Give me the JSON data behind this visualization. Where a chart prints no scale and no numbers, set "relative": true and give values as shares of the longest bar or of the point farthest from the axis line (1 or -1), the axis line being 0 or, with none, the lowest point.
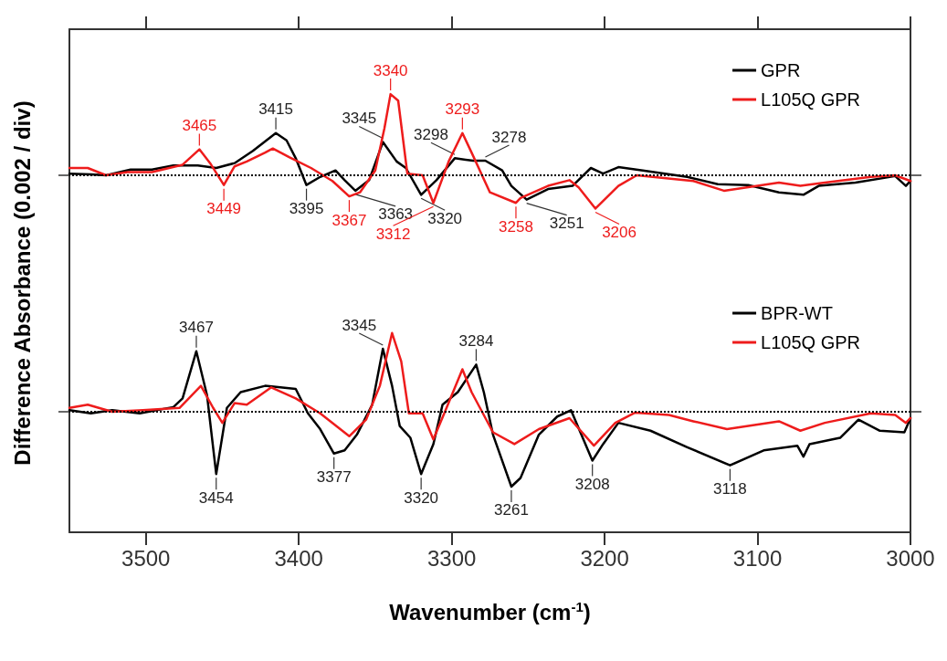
{
  "chart_data": [
    {
      "type": "line",
      "relative": true,
      "ylabel": "Difference Absorbance (0.002 / div)",
      "xlim": [
        3550,
        3000
      ],
      "xticks": [
        {
          "value": 3500,
          "label": null
        },
        {
          "value": 3400,
          "label": null
        },
        {
          "value": 3300,
          "label": null
        },
        {
          "value": 3200,
          "label": null
        },
        {
          "value": 3100,
          "label": null
        },
        {
          "value": 3000,
          "label": null
        }
      ],
      "tick_labels": false,
      "legend": "top right",
      "ref_lines": [
        {
          "axis": "y",
          "value": 0,
          "color": "#000000",
          "line_style": "dotted"
        }
      ],
      "annotations": [
        {
          "text": "3465",
          "x": 3465,
          "y": 0.32
        },
        {
          "text": "3415",
          "x": 3415,
          "y": 0.52
        },
        {
          "text": "3340",
          "x": 3340,
          "y": 1
        },
        {
          "text": "3345",
          "x": 3345,
          "y": 0.41
        },
        {
          "text": "3298",
          "x": 3298,
          "y": 0.21
        },
        {
          "text": "3293",
          "x": 3293,
          "y": 0.52
        },
        {
          "text": "3278",
          "x": 3278,
          "y": 0.18
        },
        {
          "text": "3449",
          "x": 3449,
          "y": -0.12
        },
        {
          "text": "3395",
          "x": 3395,
          "y": -0.12
        },
        {
          "text": "3367",
          "x": 3367,
          "y": -0.26
        },
        {
          "text": "3363",
          "x": 3363,
          "y": -0.19
        },
        {
          "text": "3320",
          "x": 3320,
          "y": -0.24
        },
        {
          "text": "3312",
          "x": 3312,
          "y": -0.34
        },
        {
          "text": "3258",
          "x": 3258,
          "y": -0.34
        },
        {
          "text": "3251",
          "x": 3251,
          "y": -0.3
        },
        {
          "text": "3206",
          "x": 3206,
          "y": -0.41
        }
      ],
      "series": [
        {
          "name": "GPR",
          "color": "#000000",
          "x": [
            3550,
            3536,
            3526,
            3510,
            3496,
            3482,
            3466,
            3454,
            3442,
            3430,
            3415,
            3408,
            3402,
            3395,
            3386,
            3376,
            3370,
            3363,
            3354,
            3345,
            3336,
            3330,
            3320,
            3310,
            3298,
            3286,
            3278,
            3267,
            3261,
            3251,
            3237,
            3221,
            3209,
            3201,
            3191,
            3175,
            3146,
            3126,
            3106,
            3086,
            3070,
            3060,
            3036,
            3010,
            3003,
            3000
          ],
          "values": [
            0.02,
            0.01,
            0,
            0.07,
            0.07,
            0.12,
            0.12,
            0.09,
            0.15,
            0.3,
            0.52,
            0.43,
            0.21,
            -0.12,
            -0.02,
            0.06,
            -0.06,
            -0.19,
            -0.06,
            0.41,
            0.17,
            0.09,
            -0.24,
            -0.06,
            0.21,
            0.18,
            0.18,
            0.06,
            -0.13,
            -0.3,
            -0.17,
            -0.13,
            0.09,
            0.02,
            0.1,
            0.06,
            -0.02,
            -0.11,
            -0.12,
            -0.21,
            -0.24,
            -0.13,
            -0.09,
            -0.01,
            -0.13,
            -0.07
          ]
        },
        {
          "name": "L105Q GPR",
          "color": "#ee1c1c",
          "x": [
            3550,
            3538,
            3526,
            3512,
            3496,
            3476,
            3465,
            3458,
            3449,
            3442,
            3434,
            3422,
            3417,
            3406,
            3392,
            3378,
            3367,
            3360,
            3350,
            3344,
            3340,
            3335,
            3329,
            3319,
            3312,
            3302,
            3293,
            3287,
            3275,
            3258,
            3255,
            3237,
            3223,
            3217,
            3206,
            3191,
            3179,
            3142,
            3122,
            3086,
            3072,
            3056,
            3026,
            3010,
            3000
          ],
          "values": [
            0.09,
            0.09,
            0,
            0.04,
            0.04,
            0.13,
            0.32,
            0.15,
            -0.12,
            0.11,
            0.17,
            0.28,
            0.33,
            0.22,
            0.09,
            -0.07,
            -0.26,
            -0.21,
            0.06,
            0.58,
            1,
            0.92,
            0.02,
            0,
            -0.34,
            0.17,
            0.52,
            0.28,
            -0.21,
            -0.34,
            -0.28,
            -0.13,
            -0.06,
            -0.15,
            -0.41,
            -0.13,
            0,
            -0.07,
            -0.19,
            -0.09,
            -0.13,
            -0.09,
            -0.02,
            0,
            -0.07
          ]
        }
      ]
    },
    {
      "type": "line",
      "relative": true,
      "xlabel": "Wavenumber (cm$^{-1}$)",
      "xlim": [
        3550,
        3000
      ],
      "xticks": [
        3500,
        3400,
        3300,
        3200,
        3100,
        3000
      ],
      "tick_labels": "x",
      "legend": "top right",
      "ref_lines": [
        {
          "axis": "y",
          "value": 0,
          "color": "#000000",
          "line_style": "dotted"
        }
      ],
      "annotations": [
        {
          "text": "3467",
          "x": 3467,
          "y": 0.77
        },
        {
          "text": "3345",
          "x": 3345,
          "y": 0.8
        },
        {
          "text": "3284",
          "x": 3284,
          "y": 0.6
        },
        {
          "text": "3454",
          "x": 3454,
          "y": -0.79
        },
        {
          "text": "3377",
          "x": 3377,
          "y": -0.53
        },
        {
          "text": "3320",
          "x": 3320,
          "y": -0.79
        },
        {
          "text": "3261",
          "x": 3261,
          "y": -0.95
        },
        {
          "text": "3208",
          "x": 3208,
          "y": -0.62
        },
        {
          "text": "3118",
          "x": 3118,
          "y": -0.68
        }
      ],
      "series": [
        {
          "name": "BPR-WT",
          "color": "#000000",
          "x": [
            3550,
            3536,
            3522,
            3504,
            3482,
            3476,
            3467,
            3460,
            3454,
            3447,
            3438,
            3422,
            3402,
            3394,
            3386,
            3377,
            3370,
            3362,
            3352,
            3345,
            3339,
            3334,
            3327,
            3320,
            3312,
            3306,
            3296,
            3284,
            3279,
            3273,
            3261,
            3255,
            3243,
            3231,
            3222,
            3208,
            3201,
            3191,
            3170,
            3146,
            3118,
            3096,
            3074,
            3070,
            3066,
            3046,
            3034,
            3020,
            3004,
            3000
          ],
          "values": [
            0.02,
            -0.02,
            0.02,
            -0.02,
            0.06,
            0.17,
            0.77,
            0.21,
            -0.79,
            0.05,
            0.25,
            0.33,
            0.29,
            -0.02,
            -0.22,
            -0.53,
            -0.49,
            -0.29,
            0.09,
            0.8,
            0.33,
            -0.18,
            -0.33,
            -0.79,
            -0.41,
            0.09,
            0.25,
            0.6,
            0.25,
            -0.29,
            -0.95,
            -0.84,
            -0.29,
            -0.06,
            0.02,
            -0.62,
            -0.41,
            -0.14,
            -0.24,
            -0.45,
            -0.68,
            -0.49,
            -0.43,
            -0.57,
            -0.41,
            -0.33,
            -0.1,
            -0.24,
            -0.26,
            -0.08
          ]
        },
        {
          "name": "L105Q GPR",
          "color": "#ee1c1c",
          "x": [
            3550,
            3538,
            3522,
            3502,
            3478,
            3464,
            3456,
            3450,
            3442,
            3434,
            3418,
            3402,
            3386,
            3367,
            3356,
            3347,
            3339,
            3333,
            3328,
            3319,
            3312,
            3304,
            3293,
            3287,
            3273,
            3259,
            3243,
            3223,
            3207,
            3193,
            3180,
            3158,
            3142,
            3120,
            3086,
            3072,
            3056,
            3026,
            3010,
            3003,
            3000
          ],
          "values": [
            0.05,
            0.09,
            0,
            0.02,
            0.05,
            0.33,
            0.05,
            -0.14,
            0.11,
            0.09,
            0.31,
            0.17,
            -0.02,
            -0.31,
            -0.1,
            0.33,
            1,
            0.64,
            -0.02,
            -0.02,
            -0.35,
            0.02,
            0.54,
            0.25,
            -0.26,
            -0.41,
            -0.22,
            -0.08,
            -0.43,
            -0.14,
            -0.01,
            -0.04,
            -0.12,
            -0.22,
            -0.12,
            -0.24,
            -0.14,
            -0.02,
            -0.04,
            -0.14,
            -0.08
          ]
        }
      ]
    }
  ]
}
